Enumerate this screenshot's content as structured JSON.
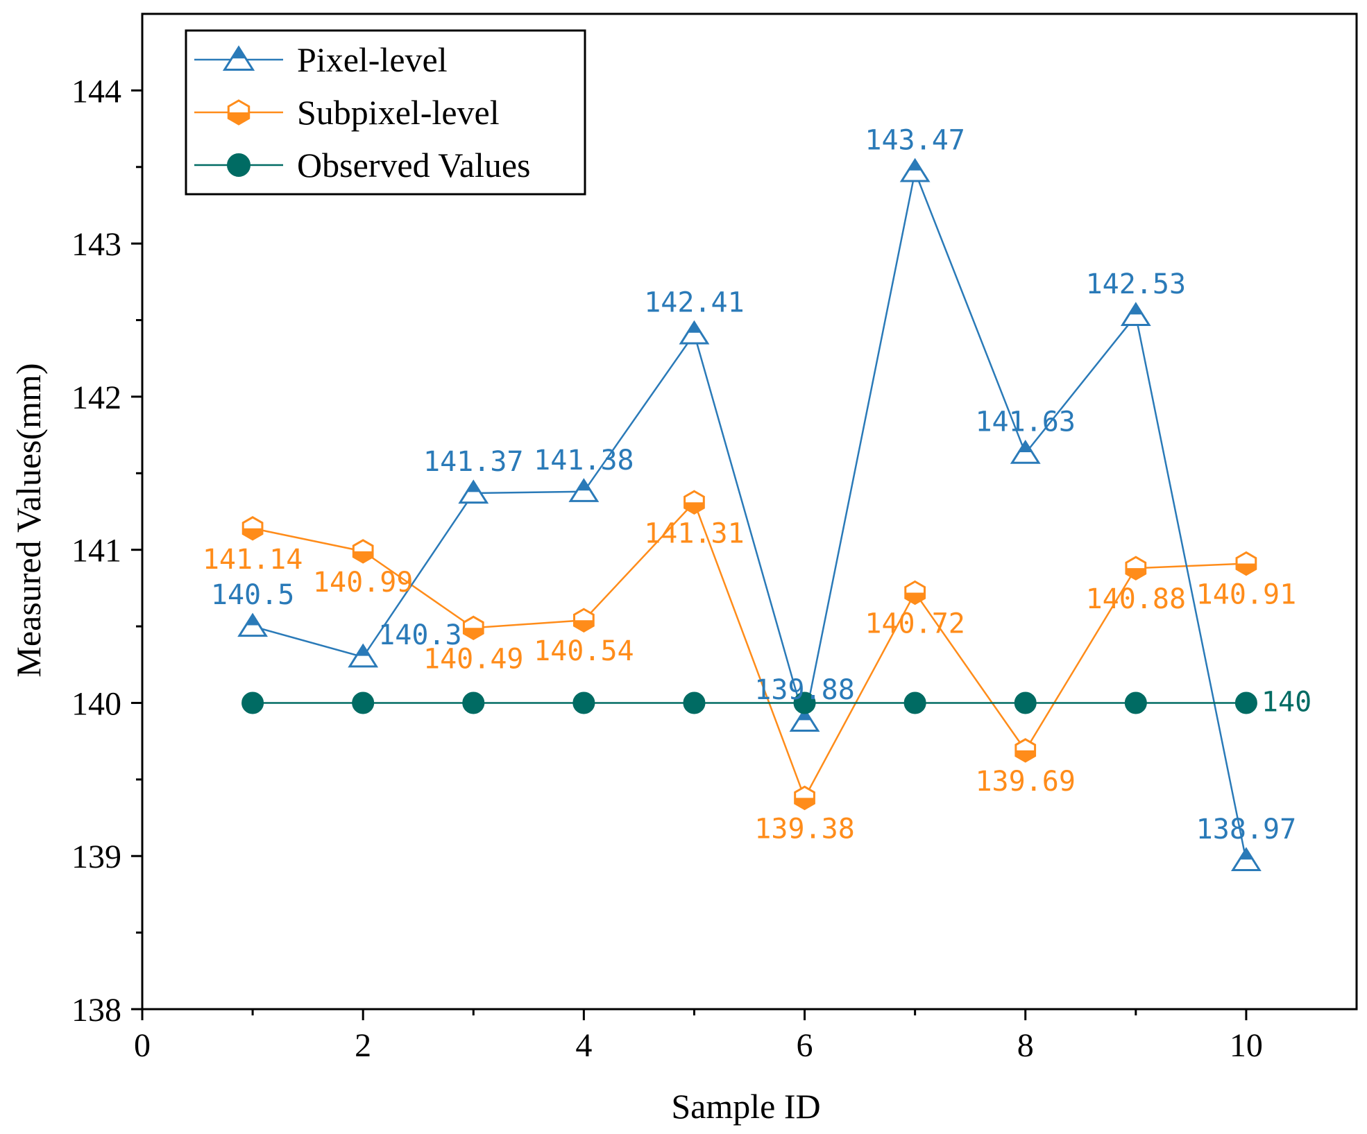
{
  "chart_data": {
    "type": "line",
    "title": "",
    "xlabel": "Sample ID",
    "ylabel": "Measured Values(mm)",
    "xlim": [
      0,
      11
    ],
    "ylim": [
      138,
      144.5
    ],
    "xticks": [
      0,
      2,
      4,
      6,
      8,
      10
    ],
    "yticks": [
      138,
      139,
      140,
      141,
      142,
      143,
      144
    ],
    "x": [
      1,
      2,
      3,
      4,
      5,
      6,
      7,
      8,
      9,
      10
    ],
    "legend": "top-left",
    "grid": false,
    "series": [
      {
        "name": "Pixel-level",
        "color": "#2a7ab8",
        "marker": "triangle",
        "values": [
          140.5,
          140.3,
          141.37,
          141.38,
          142.41,
          139.88,
          143.47,
          141.63,
          142.53,
          138.97
        ],
        "labels": [
          "140.5",
          "140.3",
          "141.37",
          "141.38",
          "142.41",
          "139.88",
          "143.47",
          "141.63",
          "142.53",
          "138.97"
        ],
        "label_pos": [
          "above",
          "below-right",
          "above",
          "above",
          "above",
          "above",
          "above",
          "above",
          "above",
          "above"
        ]
      },
      {
        "name": "Subpixel-level",
        "color": "#ff8c1a",
        "marker": "hexagon",
        "values": [
          141.14,
          140.99,
          140.49,
          140.54,
          141.31,
          139.38,
          140.72,
          139.69,
          140.88,
          140.91
        ],
        "labels": [
          "141.14",
          "140.99",
          "140.49",
          "140.54",
          "141.31",
          "139.38",
          "140.72",
          "139.69",
          "140.88",
          "140.91"
        ],
        "label_pos": [
          "below",
          "below",
          "below",
          "below",
          "below",
          "below",
          "below",
          "below",
          "below",
          "below"
        ]
      },
      {
        "name": "Observed Values",
        "color": "#006b63",
        "marker": "circle",
        "values": [
          140,
          140,
          140,
          140,
          140,
          140,
          140,
          140,
          140,
          140
        ],
        "labels": [
          "",
          "",
          "",
          "",
          "",
          "",
          "",
          "",
          "",
          "140"
        ],
        "label_pos": [
          "right",
          "right",
          "right",
          "right",
          "right",
          "right",
          "right",
          "right",
          "right",
          "right"
        ]
      }
    ]
  }
}
